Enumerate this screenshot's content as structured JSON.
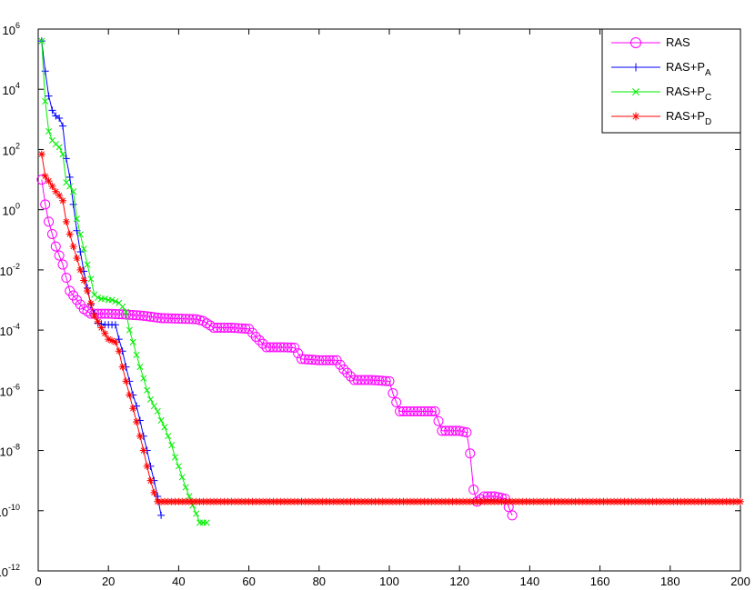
{
  "chart_data": {
    "type": "line",
    "title": "",
    "xlabel": "",
    "ylabel": "",
    "xlim": [
      0,
      200
    ],
    "ylim_log10": [
      -12,
      6
    ],
    "yscale": "log",
    "grid": false,
    "legend_placement": "top-right",
    "x_ticks": [
      "0",
      "20",
      "40",
      "60",
      "80",
      "100",
      "120",
      "140",
      "160",
      "180",
      "200"
    ],
    "y_ticks": [
      {
        "base": "10",
        "exp": "6"
      },
      {
        "base": "10",
        "exp": "4"
      },
      {
        "base": "10",
        "exp": "2"
      },
      {
        "base": "10",
        "exp": "0"
      },
      {
        "base": "10",
        "exp": "-2"
      },
      {
        "base": "10",
        "exp": "-4"
      },
      {
        "base": "10",
        "exp": "-6"
      },
      {
        "base": "10",
        "exp": "-8"
      },
      {
        "base": "10",
        "exp": "-10"
      },
      {
        "base": "10",
        "exp": "-12"
      }
    ],
    "series": [
      {
        "name": "RAS",
        "legend_main": "RAS",
        "legend_sub": "",
        "color": "#ff00ff",
        "marker": "circle",
        "x": [
          1,
          2,
          3,
          5,
          7,
          9,
          11,
          13,
          15,
          20,
          25,
          30,
          35,
          40,
          45,
          47,
          50,
          55,
          60,
          62,
          65,
          70,
          73,
          75,
          80,
          85,
          87,
          90,
          95,
          100,
          101,
          102,
          103,
          105,
          110,
          113,
          115,
          120,
          122,
          123,
          124,
          125,
          127,
          130,
          133,
          135
        ],
        "y": [
          10.0,
          1.5,
          0.4,
          0.06,
          0.015,
          0.002,
          0.001,
          0.0005,
          0.00035,
          0.00035,
          0.00033,
          0.0003,
          0.00025,
          0.00024,
          0.00023,
          0.0002,
          0.00012,
          0.00012,
          0.00011,
          6e-05,
          2.7e-05,
          2.7e-05,
          2.6e-05,
          1.1e-05,
          1e-05,
          1e-05,
          5e-06,
          2.2e-06,
          2.2e-06,
          2e-06,
          8e-07,
          4e-07,
          2e-07,
          2e-07,
          2e-07,
          2e-07,
          4.5e-08,
          4.5e-08,
          4e-08,
          8e-09,
          5e-10,
          2e-10,
          3e-10,
          3e-10,
          2.5e-10,
          7e-11
        ]
      },
      {
        "name": "RAS+P_A",
        "legend_main": "RAS+P",
        "legend_sub": "A",
        "color": "#0000ff",
        "marker": "plus",
        "x": [
          1,
          2,
          3,
          4,
          5,
          6,
          7,
          8,
          9,
          10,
          11,
          12,
          13,
          14,
          15,
          16,
          17,
          18,
          19,
          20,
          21,
          22,
          23,
          24,
          25,
          26,
          27,
          28,
          29,
          30,
          31,
          32,
          33,
          34,
          35
        ],
        "y": [
          400000.0,
          40000.0,
          6000.0,
          2000.0,
          1300.0,
          1100.0,
          600.0,
          50.0,
          12.0,
          1.5,
          0.2,
          0.04,
          0.009,
          0.0025,
          0.0007,
          0.00035,
          0.00017,
          0.00016,
          0.00015,
          0.00015,
          0.00015,
          0.00015,
          5e-05,
          2e-05,
          6e-06,
          2e-06,
          7e-07,
          3e-07,
          1e-07,
          3e-08,
          1e-08,
          3e-09,
          1e-09,
          3e-10,
          7e-11
        ]
      },
      {
        "name": "RAS+P_C",
        "legend_main": "RAS+P",
        "legend_sub": "C",
        "color": "#00ee00",
        "marker": "x",
        "x": [
          1,
          2,
          3,
          4,
          5,
          6,
          7,
          8,
          9,
          10,
          11,
          12,
          13,
          14,
          15,
          16,
          17,
          18,
          19,
          20,
          21,
          22,
          23,
          24,
          25,
          26,
          27,
          28,
          29,
          30,
          31,
          32,
          33,
          34,
          35,
          36,
          37,
          38,
          39,
          40,
          41,
          42,
          43,
          44,
          45,
          46,
          47,
          48
        ],
        "y": [
          400000.0,
          4000.0,
          400.0,
          200.0,
          150.0,
          120.0,
          70.0,
          8.0,
          6.0,
          4.0,
          0.5,
          0.15,
          0.05,
          0.015,
          0.005,
          0.0015,
          0.0012,
          0.0011,
          0.0011,
          0.001,
          0.001,
          0.0009,
          0.0008,
          0.0006,
          0.0004,
          0.0001,
          4e-05,
          1.5e-05,
          6e-06,
          2.5e-06,
          1e-06,
          5e-07,
          3e-07,
          2e-07,
          1e-07,
          6e-08,
          3e-08,
          1.5e-08,
          6e-09,
          3e-09,
          1.3e-09,
          6e-10,
          3e-10,
          1.5e-10,
          8e-11,
          4e-11,
          4e-11,
          4e-11
        ]
      },
      {
        "name": "RAS+P_D",
        "legend_main": "RAS+P",
        "legend_sub": "D",
        "color": "#ff0000",
        "marker": "star",
        "x": [
          1,
          2,
          3,
          4,
          5,
          6,
          7,
          8,
          10,
          12,
          14,
          16,
          18,
          20,
          22,
          23,
          24,
          25,
          26,
          27,
          28,
          29,
          30,
          31,
          32,
          33,
          34,
          35,
          40,
          50,
          60,
          80,
          100,
          120,
          140,
          160,
          180,
          200
        ],
        "y": [
          70.0,
          13.0,
          9.0,
          6.0,
          4.0,
          3.0,
          2.0,
          0.4,
          0.06,
          0.01,
          0.002,
          0.0003,
          0.00012,
          5e-05,
          4e-05,
          2e-05,
          6e-06,
          2e-06,
          7e-07,
          2.5e-07,
          9e-08,
          3e-08,
          1e-08,
          3e-09,
          1e-09,
          4e-10,
          2e-10,
          2e-10,
          2e-10,
          2e-10,
          2e-10,
          2e-10,
          2e-10,
          2e-10,
          2e-10,
          2e-10,
          2e-10,
          2e-10
        ]
      }
    ]
  }
}
